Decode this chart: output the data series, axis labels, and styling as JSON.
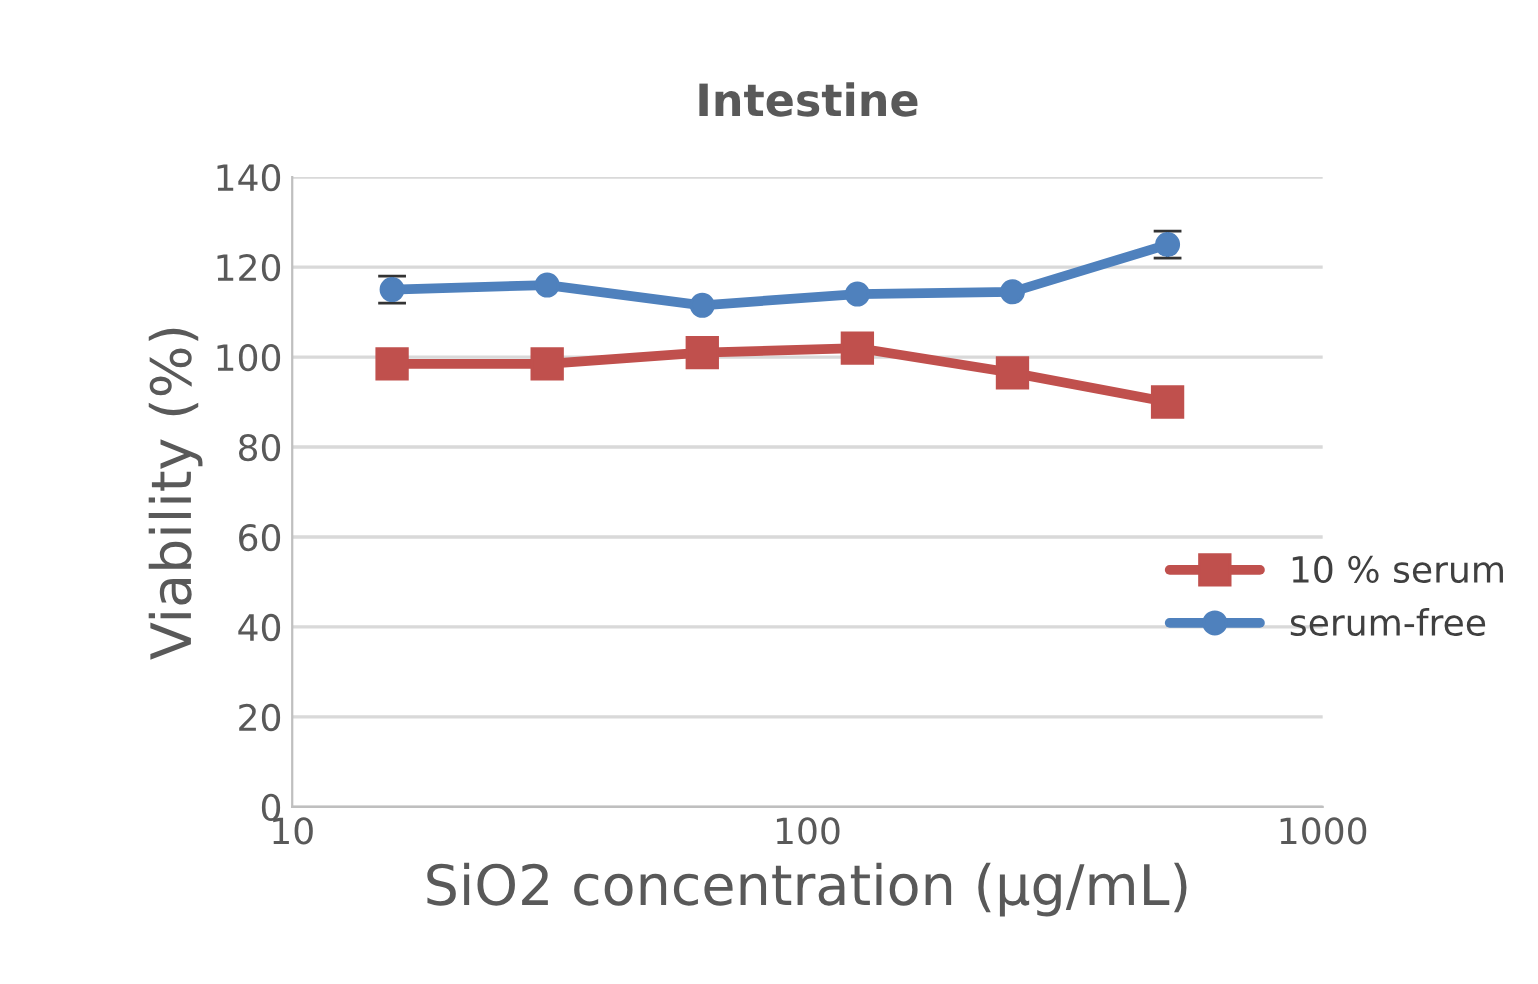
{
  "chart_data": {
    "type": "line",
    "title": "Intestine",
    "xlabel": "SiO2 concentration (µg/mL)",
    "ylabel": "Viability (%)",
    "x": [
      15.625,
      31.25,
      62.5,
      125,
      250,
      500
    ],
    "series": [
      {
        "name": "10 % serum",
        "color": "#c0504d",
        "values": [
          98.5,
          98.5,
          101,
          102,
          96.5,
          90
        ],
        "marker": "square"
      },
      {
        "name": "serum-free",
        "color": "#4f81bd",
        "values": [
          115,
          116,
          111.5,
          114,
          114.5,
          125
        ],
        "marker": "circle",
        "errors": [
          3,
          null,
          null,
          null,
          null,
          3
        ]
      }
    ],
    "log": "x",
    "xlim": [
      10,
      1000
    ],
    "xticks": [
      10,
      100,
      1000
    ],
    "ylim": [
      0,
      140
    ],
    "yticks": [
      0,
      20,
      40,
      60,
      80,
      100,
      120,
      140
    ],
    "grid": "y",
    "legend": "right",
    "line_style": "solid"
  }
}
